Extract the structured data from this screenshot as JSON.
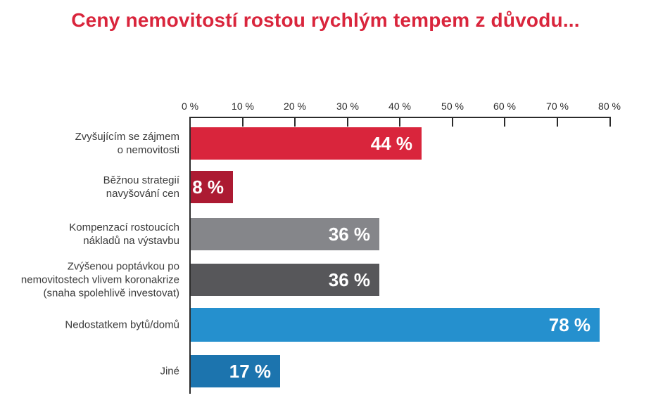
{
  "title": "Ceny nemovitostí rostou rychlým tempem z důvodu...",
  "colors": {
    "title": "#d9253c",
    "axis": "#2b2b2b",
    "category_label": "#3b3b3b",
    "value_label": "#ffffff",
    "background": "#ffffff"
  },
  "chart_data": {
    "type": "bar",
    "orientation": "horizontal",
    "title": "Ceny nemovitostí rostou rychlým tempem z důvodu...",
    "categories": [
      "Zvyšujícím se zájmem o nemovitosti",
      "Běžnou strategií navyšování cen",
      "Kompenzací rostoucích nákladů na výstavbu",
      "Zvýšenou poptávkou po nemovitostech vlivem koronakrize (snaha spolehlivě investovat)",
      "Nedostatkem bytů/domů",
      "Jiné"
    ],
    "category_lines": [
      [
        "Zvyšujícím se zájmem",
        "o nemovitosti"
      ],
      [
        "Běžnou strategií",
        "navyšování cen"
      ],
      [
        "Kompenzací rostoucích",
        "nákladů na výstavbu"
      ],
      [
        "Zvýšenou poptávkou po",
        "nemovitostech vlivem koronakrize",
        "(snaha spolehlivě investovat)"
      ],
      [
        "Nedostatkem bytů/domů"
      ],
      [
        "Jiné"
      ]
    ],
    "values": [
      44,
      8,
      36,
      36,
      78,
      17
    ],
    "value_labels": [
      "44 %",
      "8 %",
      "36 %",
      "36 %",
      "78 %",
      "17 %"
    ],
    "bar_colors": [
      "#d9253c",
      "#ac1a32",
      "#85868a",
      "#57575a",
      "#2590ce",
      "#1c74ae"
    ],
    "xlabel": "",
    "ylabel": "",
    "axis": {
      "position": "top",
      "min": 0,
      "max": 80,
      "step": 10,
      "tick_labels": [
        "0 %",
        "10 %",
        "20 %",
        "30 %",
        "40 %",
        "50 %",
        "60 %",
        "70 %",
        "80 %"
      ],
      "grid": false
    },
    "legend": null
  }
}
